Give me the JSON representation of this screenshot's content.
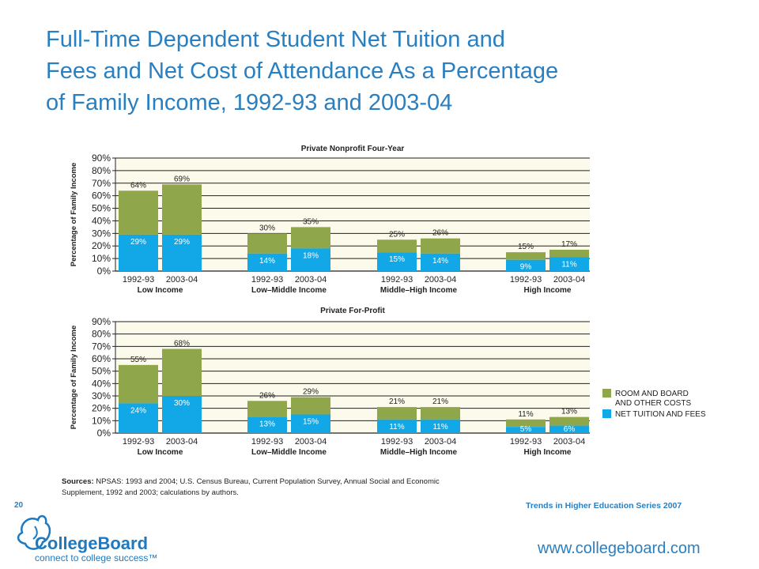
{
  "title_lines": [
    "Full-Time Dependent Student Net Tuition and",
    "Fees and Net Cost of Attendance As a Percentage",
    "of Family Income, 1992-93 and 2003-04"
  ],
  "colors": {
    "room_board": "#8fa64a",
    "net_tuition": "#12a7e6",
    "panel_bg": "#fcfaea",
    "title": "#2a7fc0"
  },
  "legend": {
    "room_board_line1": "ROOM AND BOARD",
    "room_board_line2": "AND OTHER COSTS",
    "net_tuition": "NET TUITION AND FEES"
  },
  "chart_data": [
    {
      "type": "bar",
      "stacked": true,
      "title": "Private Nonprofit Four-Year",
      "ylabel": "Percentage of Family Income",
      "ylim": [
        0,
        90
      ],
      "yticks": [
        "0%",
        "10%",
        "20%",
        "30%",
        "40%",
        "50%",
        "60%",
        "70%",
        "80%",
        "90%"
      ],
      "groups": [
        "Low Income",
        "Low–Middle Income",
        "Middle–High Income",
        "High Income"
      ],
      "years": [
        "1992-93",
        "2003-04"
      ],
      "net_tuition": [
        [
          29,
          29
        ],
        [
          14,
          18
        ],
        [
          15,
          14
        ],
        [
          9,
          11
        ]
      ],
      "total": [
        [
          64,
          69
        ],
        [
          30,
          35
        ],
        [
          25,
          26
        ],
        [
          15,
          17
        ]
      ],
      "total_labels": [
        [
          "64%",
          "69%"
        ],
        [
          "30%",
          "35%"
        ],
        [
          "25%",
          "26%"
        ],
        [
          "15%",
          "17%"
        ]
      ],
      "net_labels": [
        [
          "29%",
          "29%"
        ],
        [
          "14%",
          "18%"
        ],
        [
          "15%",
          "14%"
        ],
        [
          "9%",
          "11%"
        ]
      ]
    },
    {
      "type": "bar",
      "stacked": true,
      "title": "Private For-Profit",
      "ylabel": "Percentage of Family Income",
      "ylim": [
        0,
        90
      ],
      "yticks": [
        "0%",
        "10%",
        "20%",
        "30%",
        "40%",
        "50%",
        "60%",
        "70%",
        "80%",
        "90%"
      ],
      "groups": [
        "Low Income",
        "Low–Middle Income",
        "Middle–High Income",
        "High Income"
      ],
      "years": [
        "1992-93",
        "2003-04"
      ],
      "net_tuition": [
        [
          24,
          30
        ],
        [
          13,
          15
        ],
        [
          11,
          11
        ],
        [
          5,
          6
        ]
      ],
      "total": [
        [
          55,
          68
        ],
        [
          26,
          29
        ],
        [
          21,
          21
        ],
        [
          11,
          13
        ]
      ],
      "total_labels": [
        [
          "55%",
          "68%"
        ],
        [
          "26%",
          "29%"
        ],
        [
          "21%",
          "21%"
        ],
        [
          "11%",
          "13%"
        ]
      ],
      "net_labels": [
        [
          "24%",
          "30%"
        ],
        [
          "13%",
          "15%"
        ],
        [
          "11%",
          "11%"
        ],
        [
          "5%",
          "6%"
        ]
      ]
    }
  ],
  "sources": {
    "label": "Sources:",
    "text": "NPSAS: 1993 and 2004; U.S. Census Bureau, Current Population Survey, Annual Social and Economic Supplement, 1992 and 2003; calculations by authors."
  },
  "footer": {
    "page_number": "20",
    "series": "Trends in Higher Education Series 2007",
    "website": "www.collegeboard.com",
    "logo_name": "CollegeBoard",
    "logo_tagline": "connect to college success™"
  }
}
